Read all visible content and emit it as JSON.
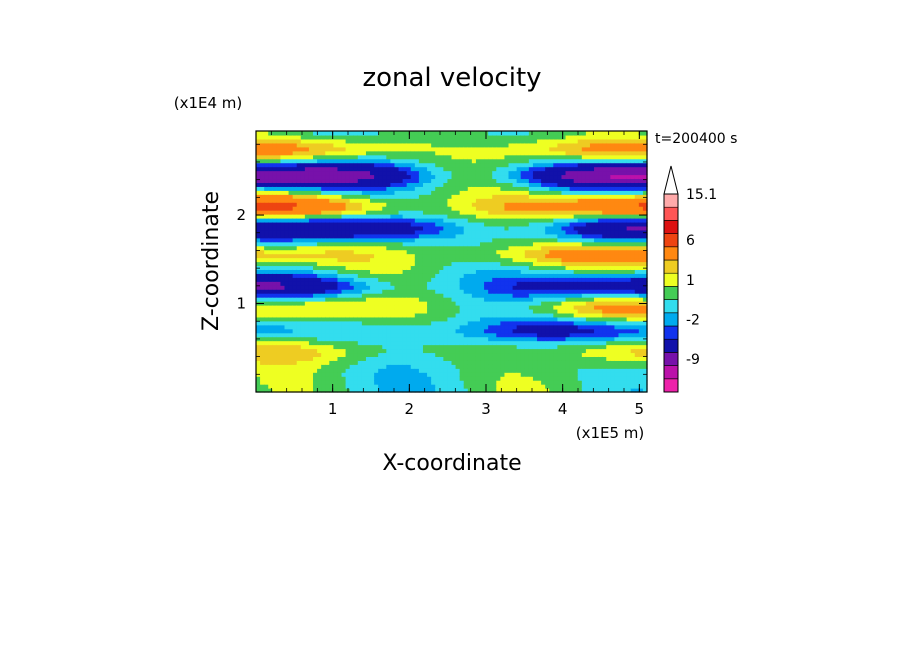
{
  "chart_data": {
    "type": "heatmap",
    "title": "zonal velocity",
    "xlabel": "X-coordinate",
    "ylabel": "Z-coordinate",
    "x_scale_label": "(x1E5 m)",
    "y_scale_label": "(x1E4 m)",
    "time_label": "t=200400 s",
    "xlim": [
      0,
      5.1
    ],
    "ylim": [
      0,
      2.95
    ],
    "x_ticks": [
      "1",
      "2",
      "3",
      "4",
      "5"
    ],
    "y_ticks": [
      "1",
      "2"
    ],
    "colorbar": {
      "levels": [
        -15,
        -12,
        -9,
        -6,
        -3,
        -2,
        -1,
        0,
        1,
        2,
        3,
        6,
        9,
        12,
        15.1
      ],
      "labels": [
        "15.1",
        "6",
        "1",
        "-2",
        "-9"
      ],
      "colors": [
        "#ee22aa",
        "#bb11aa",
        "#7711aa",
        "#1111aa",
        "#1133ee",
        "#00aaee",
        "#33ddee",
        "#44cc55",
        "#eeff22",
        "#eecc22",
        "#ff8811",
        "#ee4411",
        "#dd1111",
        "#ff5555",
        "#ffaaaa"
      ],
      "extend_max_color": "#ffffff"
    },
    "bands": [
      {
        "z": 2.75,
        "amp": 3.5,
        "k": 1.6,
        "ph": 0.4
      },
      {
        "z": 2.45,
        "amp": -9.0,
        "k": 1.3,
        "ph": 1.2
      },
      {
        "z": 2.1,
        "amp": 7.5,
        "k": 1.1,
        "ph": 2.0
      },
      {
        "z": 1.85,
        "amp": -6.0,
        "k": 1.4,
        "ph": 0.3
      },
      {
        "z": 1.55,
        "amp": 5.0,
        "k": 1.0,
        "ph": 2.6
      },
      {
        "z": 1.2,
        "amp": -5.5,
        "k": 1.2,
        "ph": 1.7
      },
      {
        "z": 0.95,
        "amp": 2.5,
        "k": 1.5,
        "ph": 0.9
      },
      {
        "z": 0.7,
        "amp": -3.5,
        "k": 1.1,
        "ph": 2.9
      },
      {
        "z": 0.45,
        "amp": 1.8,
        "k": 1.3,
        "ph": 1.1
      }
    ]
  }
}
